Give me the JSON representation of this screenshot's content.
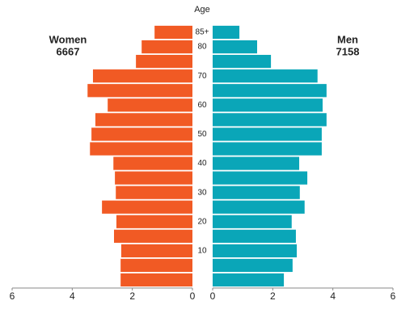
{
  "chart_data": {
    "type": "pyramid",
    "axis_title": "Age",
    "categories": [
      "85+",
      "80",
      null,
      "70",
      null,
      "60",
      null,
      "50",
      null,
      "40",
      null,
      "30",
      null,
      "20",
      null,
      "10",
      null,
      null
    ],
    "series": [
      {
        "name": "Women",
        "total": 6667,
        "color": "#f15a24",
        "values": [
          1.26,
          1.69,
          1.88,
          3.31,
          3.49,
          2.82,
          3.23,
          3.36,
          3.41,
          2.63,
          2.58,
          2.55,
          3.01,
          2.53,
          2.61,
          2.37,
          2.39,
          2.39
        ]
      },
      {
        "name": "Men",
        "total": 7158,
        "color": "#0aa6b8",
        "values": [
          0.89,
          1.48,
          1.94,
          3.49,
          3.79,
          3.66,
          3.79,
          3.63,
          3.63,
          2.88,
          3.15,
          2.9,
          3.06,
          2.63,
          2.77,
          2.8,
          2.66,
          2.37
        ]
      }
    ],
    "xlim": [
      0,
      6
    ],
    "xticks": [
      0,
      2,
      4,
      6
    ]
  }
}
